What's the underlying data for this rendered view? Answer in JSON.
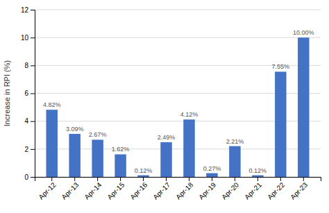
{
  "chart_data": {
    "type": "bar",
    "categories": [
      "Apr-12",
      "Apr-13",
      "Apr-14",
      "Apr-15",
      "Apr-16",
      "Apr-17",
      "Apr-18",
      "Apr-19",
      "Apr-20",
      "Apr-21",
      "Apr-22",
      "Apr-23"
    ],
    "values": [
      4.82,
      3.09,
      2.67,
      1.62,
      0.12,
      2.49,
      4.12,
      0.27,
      2.21,
      0.12,
      7.55,
      10.0
    ],
    "value_labels": [
      "4.82%",
      "3.09%",
      "2.67%",
      "1.62%",
      "0.12%",
      "2.49%",
      "4.12%",
      "0.27%",
      "2.21%",
      "0.12%",
      "7.55%",
      "10.00%"
    ],
    "data_labels": true,
    "color": "#4472c4",
    "ylabel": "Increase in RPI (%)",
    "ylim": [
      0,
      12
    ],
    "yticks": [
      0,
      2,
      4,
      6,
      8,
      10,
      12
    ],
    "grid": true
  }
}
